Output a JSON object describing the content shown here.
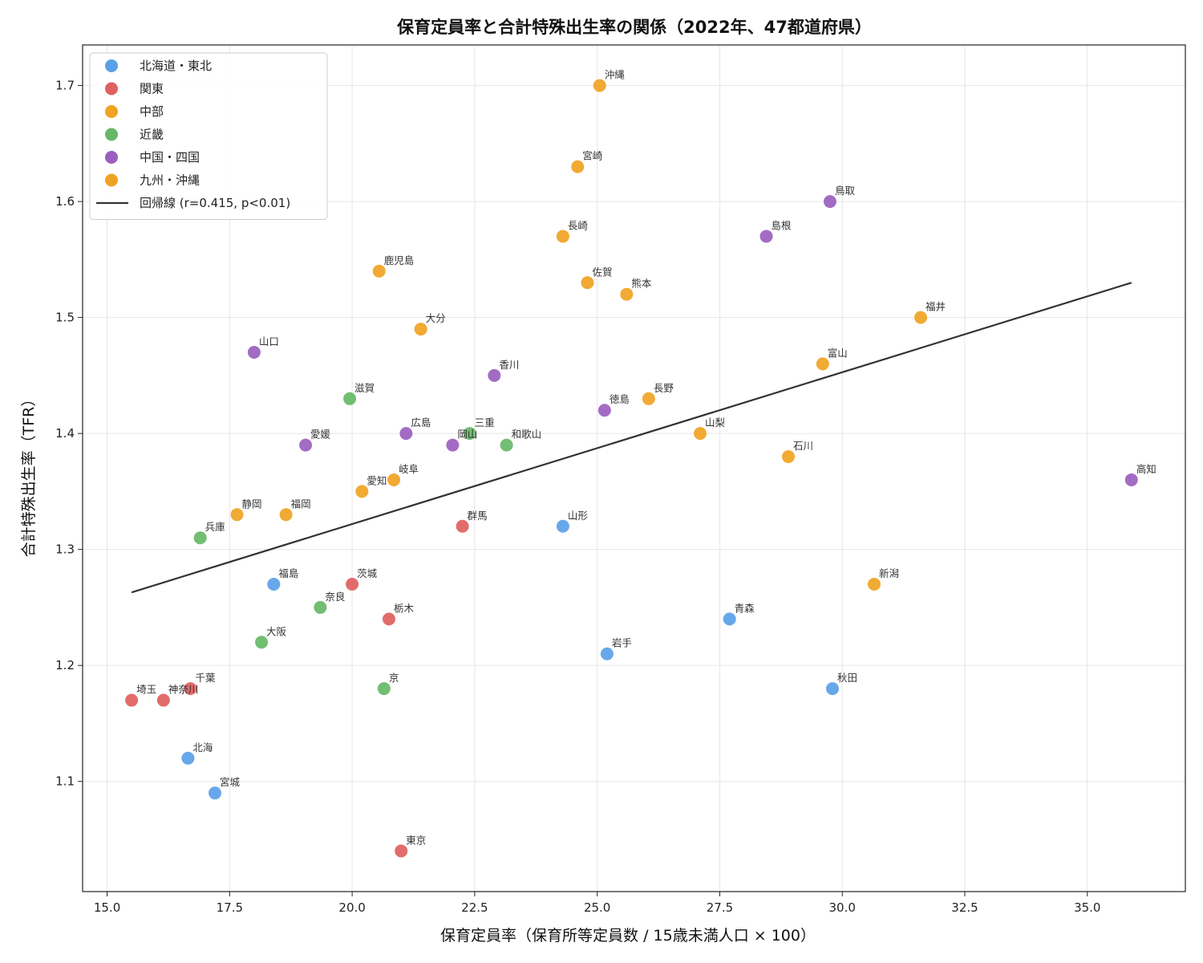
{
  "chart_data": {
    "type": "scatter",
    "title": "保育定員率と合計特殊出生率の関係（2022年、47都道府県）",
    "xlabel": "保育定員率（保育所等定員数 / 15歳未満人口 × 100）",
    "ylabel": "合計特殊出生率（TFR）",
    "xlim": [
      14.5,
      37.0
    ],
    "ylim": [
      1.005,
      1.735
    ],
    "xticks": [
      "15.0",
      "17.5",
      "20.0",
      "22.5",
      "25.0",
      "27.5",
      "30.0",
      "32.5",
      "35.0"
    ],
    "yticks": [
      "1.1",
      "1.2",
      "1.3",
      "1.4",
      "1.5",
      "1.6",
      "1.7"
    ],
    "grid": true,
    "legend_position": "top-left",
    "regression": {
      "label": "回帰線 (r=0.415, p<0.01)",
      "color": "#333333",
      "x": [
        15.5,
        35.9
      ],
      "y": [
        1.263,
        1.53
      ]
    },
    "series": [
      {
        "name": "北海道・東北",
        "color": "#5aa0e8",
        "points": [
          {
            "label": "北海",
            "x": 16.65,
            "y": 1.12
          },
          {
            "label": "宮城",
            "x": 17.2,
            "y": 1.09
          },
          {
            "label": "福島",
            "x": 18.4,
            "y": 1.27
          },
          {
            "label": "山形",
            "x": 24.3,
            "y": 1.32
          },
          {
            "label": "岩手",
            "x": 25.2,
            "y": 1.21
          },
          {
            "label": "青森",
            "x": 27.7,
            "y": 1.24
          },
          {
            "label": "秋田",
            "x": 29.8,
            "y": 1.18
          }
        ]
      },
      {
        "name": "関東",
        "color": "#e06060",
        "points": [
          {
            "label": "埼玉",
            "x": 15.5,
            "y": 1.17
          },
          {
            "label": "神奈川",
            "x": 16.15,
            "y": 1.17
          },
          {
            "label": "千葉",
            "x": 16.7,
            "y": 1.18
          },
          {
            "label": "茨城",
            "x": 20.0,
            "y": 1.27
          },
          {
            "label": "栃木",
            "x": 20.75,
            "y": 1.24
          },
          {
            "label": "東京",
            "x": 21.0,
            "y": 1.04
          },
          {
            "label": "群馬",
            "x": 22.25,
            "y": 1.32
          }
        ]
      },
      {
        "name": "中部",
        "color": "#f0a322",
        "points": [
          {
            "label": "静岡",
            "x": 17.65,
            "y": 1.33
          },
          {
            "label": "愛知",
            "x": 20.2,
            "y": 1.35
          },
          {
            "label": "岐阜",
            "x": 20.85,
            "y": 1.36
          },
          {
            "label": "長野",
            "x": 26.05,
            "y": 1.43
          },
          {
            "label": "山梨",
            "x": 27.1,
            "y": 1.4
          },
          {
            "label": "石川",
            "x": 28.9,
            "y": 1.38
          },
          {
            "label": "富山",
            "x": 29.6,
            "y": 1.46
          },
          {
            "label": "新潟",
            "x": 30.65,
            "y": 1.27
          },
          {
            "label": "福井",
            "x": 31.6,
            "y": 1.5
          }
        ]
      },
      {
        "name": "近畿",
        "color": "#66b866",
        "points": [
          {
            "label": "兵庫",
            "x": 16.9,
            "y": 1.31
          },
          {
            "label": "大阪",
            "x": 18.15,
            "y": 1.22
          },
          {
            "label": "奈良",
            "x": 19.35,
            "y": 1.25
          },
          {
            "label": "滋賀",
            "x": 19.95,
            "y": 1.43
          },
          {
            "label": "京",
            "x": 20.65,
            "y": 1.18
          },
          {
            "label": "三重",
            "x": 22.4,
            "y": 1.4
          },
          {
            "label": "和歌山",
            "x": 23.15,
            "y": 1.39
          }
        ]
      },
      {
        "name": "中国・四国",
        "color": "#9b5fbf",
        "points": [
          {
            "label": "山口",
            "x": 18.0,
            "y": 1.47
          },
          {
            "label": "愛媛",
            "x": 19.05,
            "y": 1.39
          },
          {
            "label": "広島",
            "x": 21.1,
            "y": 1.4
          },
          {
            "label": "岡山",
            "x": 22.05,
            "y": 1.39
          },
          {
            "label": "香川",
            "x": 22.9,
            "y": 1.45
          },
          {
            "label": "徳島",
            "x": 25.15,
            "y": 1.42
          },
          {
            "label": "島根",
            "x": 28.45,
            "y": 1.57
          },
          {
            "label": "鳥取",
            "x": 29.75,
            "y": 1.6
          },
          {
            "label": "高知",
            "x": 35.9,
            "y": 1.36
          }
        ]
      },
      {
        "name": "九州・沖縄",
        "color": "#f0a322",
        "points": [
          {
            "label": "福岡",
            "x": 18.65,
            "y": 1.33
          },
          {
            "label": "鹿児島",
            "x": 20.55,
            "y": 1.54
          },
          {
            "label": "大分",
            "x": 21.4,
            "y": 1.49
          },
          {
            "label": "長崎",
            "x": 24.3,
            "y": 1.57
          },
          {
            "label": "宮崎",
            "x": 24.6,
            "y": 1.63
          },
          {
            "label": "佐賀",
            "x": 24.8,
            "y": 1.53
          },
          {
            "label": "沖縄",
            "x": 25.05,
            "y": 1.7
          },
          {
            "label": "熊本",
            "x": 25.6,
            "y": 1.52
          }
        ]
      }
    ]
  }
}
